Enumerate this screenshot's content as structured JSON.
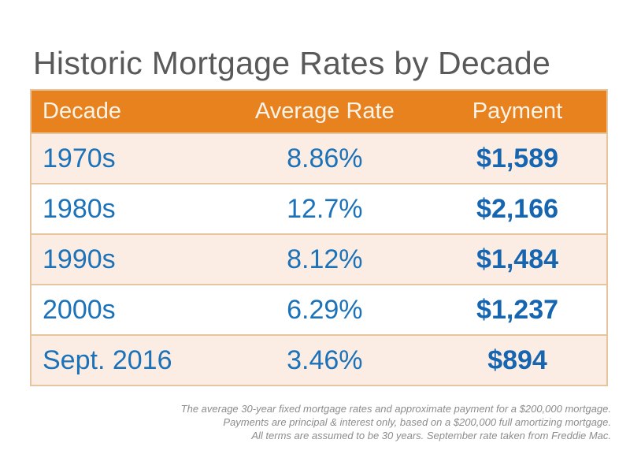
{
  "title": "Historic Mortgage Rates by Decade",
  "table": {
    "headers": {
      "decade": "Decade",
      "rate": "Average Rate",
      "payment": "Payment"
    },
    "rows": [
      {
        "decade": "1970s",
        "rate": "8.86%",
        "payment": "$1,589"
      },
      {
        "decade": "1980s",
        "rate": "12.7%",
        "payment": "$2,166"
      },
      {
        "decade": "1990s",
        "rate": "8.12%",
        "payment": "$1,484"
      },
      {
        "decade": "2000s",
        "rate": "6.29%",
        "payment": "$1,237"
      },
      {
        "decade": "Sept. 2016",
        "rate": "3.46%",
        "payment": "$894"
      }
    ]
  },
  "footnote_lines": {
    "line1": "The average 30-year fixed mortgage rates and approximate payment for a $200,000 mortgage.",
    "line2": "Payments are principal & interest only, based on a $200,000 full amortizing mortgage.",
    "line3": "All terms are assumed to be 30 years. September rate taken from Freddie Mac."
  },
  "colors": {
    "header_bg": "#E8821F",
    "header_text": "#FDF4E9",
    "row_pink": "#FBEDE4",
    "row_white": "#FFFFFF",
    "cell_blue": "#1B72B8",
    "payment_blue": "#1565B0",
    "border_tan": "#E5C49E",
    "title_gray": "#595959",
    "footnote_gray": "#8C8C8C"
  },
  "chart_data": {
    "type": "table",
    "title": "Historic Mortgage Rates by Decade",
    "columns": [
      "Decade",
      "Average Rate",
      "Payment"
    ],
    "rows": [
      [
        "1970s",
        "8.86%",
        "$1,589"
      ],
      [
        "1980s",
        "12.7%",
        "$2,166"
      ],
      [
        "1990s",
        "8.12%",
        "$1,484"
      ],
      [
        "2000s",
        "6.29%",
        "$1,237"
      ],
      [
        "Sept. 2016",
        "3.46%",
        "$894"
      ]
    ],
    "rates_numeric_percent": [
      8.86,
      12.7,
      8.12,
      6.29,
      3.46
    ],
    "payments_numeric_usd": [
      1589,
      2166,
      1484,
      1237,
      894
    ],
    "notes": "The average 30-year fixed mortgage rates and approximate payment for a $200,000 mortgage. Payments are principal & interest only, based on a $200,000 full amortizing mortgage. All terms are assumed to be 30 years. September rate taken from Freddie Mac."
  }
}
